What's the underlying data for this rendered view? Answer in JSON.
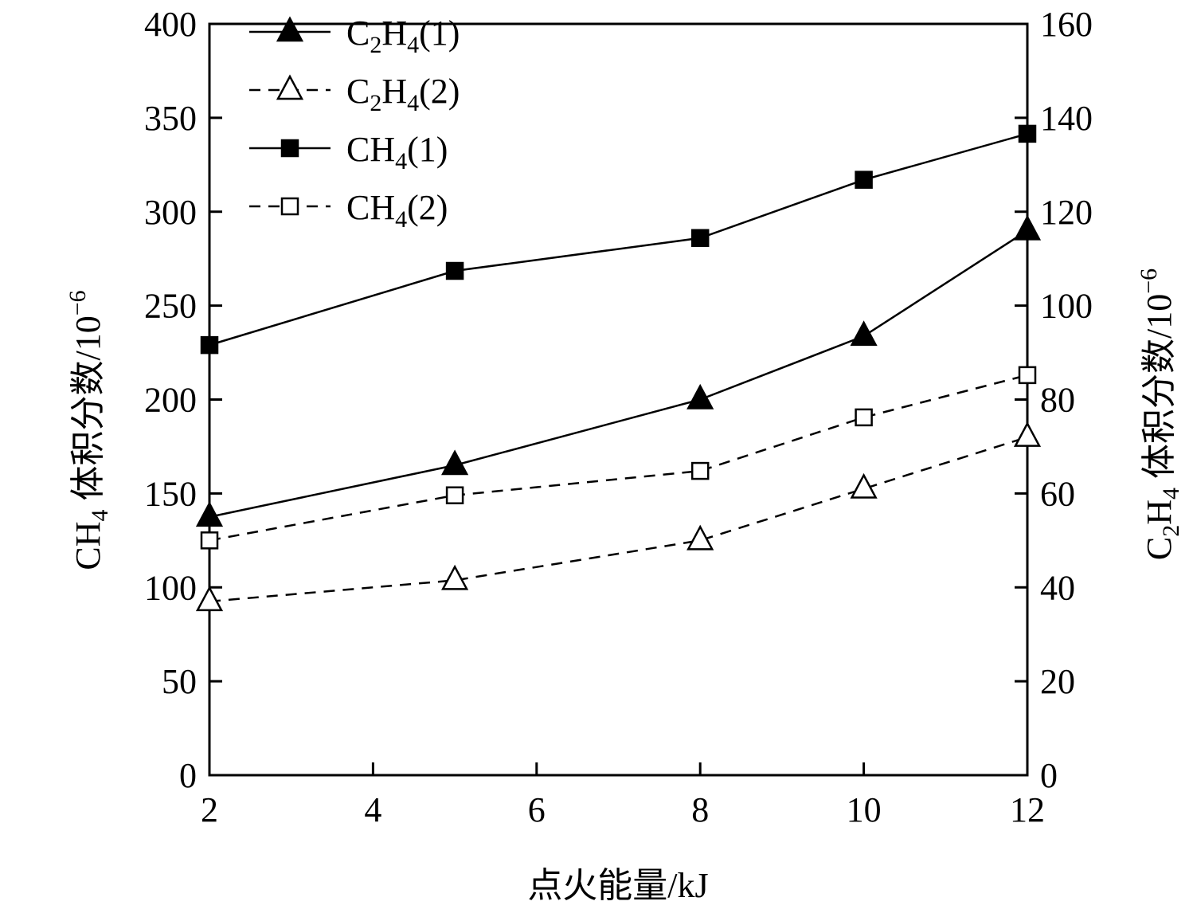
{
  "chart_data": {
    "type": "line",
    "xlabel": "点火能量/kJ",
    "ylabel_left": {
      "main": "CH",
      "sub": "4",
      "rest": " 体积分数/10",
      "sup": "−6"
    },
    "ylabel_right": {
      "main": "C",
      "sub1": "2",
      "mid": "H",
      "sub2": "4",
      "rest": " 体积分数/10",
      "sup": "−6"
    },
    "x_ticks": [
      2,
      4,
      6,
      8,
      10,
      12
    ],
    "xlim": [
      2,
      12
    ],
    "y_left_ticks": [
      0,
      50,
      100,
      150,
      200,
      250,
      300,
      350,
      400
    ],
    "ylim_left": [
      0,
      400
    ],
    "y_right_ticks": [
      0,
      20,
      40,
      60,
      80,
      100,
      120,
      140,
      160
    ],
    "ylim_right": [
      0,
      160
    ],
    "grid": false,
    "legend_position": "top-left",
    "x": [
      2,
      5,
      8,
      10,
      12
    ],
    "series": [
      {
        "name": "C2H4(1)",
        "label": {
          "a": "C",
          "s1": "2",
          "b": "H",
          "s2": "4",
          "c": "(1)"
        },
        "axis": "right",
        "marker": "filled-triangle",
        "line": "solid",
        "values": [
          55,
          66,
          80,
          93.5,
          116
        ]
      },
      {
        "name": "C2H4(2)",
        "label": {
          "a": "C",
          "s1": "2",
          "b": "H",
          "s2": "4",
          "c": "(2)"
        },
        "axis": "right",
        "marker": "open-triangle",
        "line": "dashed",
        "values": [
          37,
          41.5,
          50,
          61,
          72
        ]
      },
      {
        "name": "CH4(1)",
        "label": {
          "a": "CH",
          "s1": "4",
          "b": "",
          "s2": "",
          "c": "(1)"
        },
        "axis": "left",
        "marker": "filled-square",
        "line": "solid",
        "values": [
          229,
          268.5,
          286,
          317,
          341.5
        ]
      },
      {
        "name": "CH4(2)",
        "label": {
          "a": "CH",
          "s1": "4",
          "b": "",
          "s2": "",
          "c": "(2)"
        },
        "axis": "left",
        "marker": "open-square",
        "line": "dashed",
        "values": [
          125,
          149,
          162,
          190.5,
          213
        ]
      }
    ],
    "colors": {
      "line": "#000000",
      "background": "#ffffff"
    }
  }
}
